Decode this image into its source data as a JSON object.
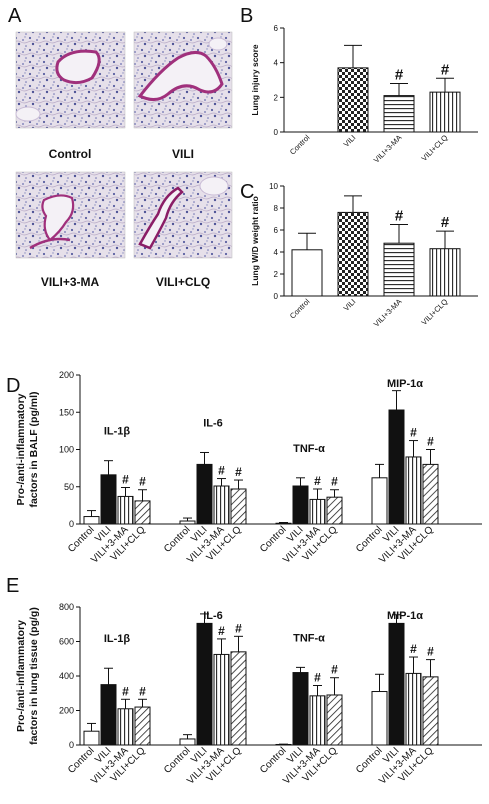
{
  "panel_letters": {
    "a": "A",
    "b": "B",
    "c": "C",
    "d": "D",
    "e": "E"
  },
  "micrographs": [
    {
      "caption": "Control"
    },
    {
      "caption": "VILI"
    },
    {
      "caption": "VILI+3-MA"
    },
    {
      "caption": "VILI+CLQ"
    }
  ],
  "colors": {
    "tissue_bg": "#e4dde8",
    "cell_dot": "#5a5fa0",
    "wall": "#a0307c",
    "ink": "#111111"
  },
  "chart_data": [
    {
      "id": "B",
      "type": "bar",
      "ylabel": "Lung injury score",
      "ylim": [
        0,
        6
      ],
      "yticks": [
        0,
        2,
        4,
        6
      ],
      "categories": [
        "Control",
        "VILI",
        "VILI+3-MA",
        "VILI+CLQ"
      ],
      "fills": [
        "white",
        "check",
        "hlines",
        "vlines"
      ],
      "values": [
        0,
        3.7,
        2.1,
        2.3
      ],
      "errors": [
        0,
        1.3,
        0.7,
        0.8
      ],
      "marks": [
        "",
        "",
        "#",
        "#"
      ]
    },
    {
      "id": "C",
      "type": "bar",
      "ylabel": "Lung W/D weight ratio",
      "ylim": [
        0,
        10
      ],
      "yticks": [
        0,
        2,
        4,
        6,
        8,
        10
      ],
      "categories": [
        "Control",
        "VILI",
        "VILI+3-MA",
        "VILI+CLQ"
      ],
      "fills": [
        "white",
        "check",
        "hlines",
        "vlines"
      ],
      "values": [
        4.2,
        7.6,
        4.8,
        4.3
      ],
      "errors": [
        1.5,
        1.5,
        1.7,
        1.6
      ],
      "marks": [
        "",
        "",
        "#",
        "#"
      ]
    },
    {
      "id": "D",
      "type": "bar",
      "ylabel_lines": [
        "Pro-/anti-inflammatory",
        "factors in BALF (pg/ml)"
      ],
      "ylim": [
        0,
        200
      ],
      "yticks": [
        0,
        50,
        100,
        150,
        200
      ],
      "categories": [
        "Control",
        "VILI",
        "VILI+3-MA",
        "VILI+CLQ"
      ],
      "fills": [
        "white",
        "black",
        "vlines",
        "diag"
      ],
      "groups": [
        {
          "name": "IL-1β",
          "values": [
            10,
            66,
            37,
            31
          ],
          "errors": [
            8,
            19,
            12,
            15
          ],
          "marks": [
            "",
            "",
            "#",
            "#"
          ]
        },
        {
          "name": "IL-6",
          "values": [
            4,
            80,
            51,
            47
          ],
          "errors": [
            4,
            16,
            10,
            12
          ],
          "marks": [
            "",
            "",
            "#",
            "#"
          ]
        },
        {
          "name": "TNF-α",
          "values": [
            1,
            51,
            33,
            36
          ],
          "errors": [
            1,
            11,
            14,
            10
          ],
          "marks": [
            "",
            "",
            "#",
            "#"
          ]
        },
        {
          "name": "MIP-1α",
          "values": [
            62,
            153,
            90,
            80
          ],
          "errors": [
            18,
            26,
            22,
            20
          ],
          "marks": [
            "",
            "",
            "#",
            "#"
          ]
        }
      ]
    },
    {
      "id": "E",
      "type": "bar",
      "ylabel_lines": [
        "Pro-/anti-inflammatory",
        "factors in lung tissue (pg/g)"
      ],
      "ylim": [
        0,
        800
      ],
      "yticks": [
        0,
        200,
        400,
        600,
        800
      ],
      "categories": [
        "Control",
        "VILI",
        "VILI+3-MA",
        "VILI+CLQ"
      ],
      "fills": [
        "white",
        "black",
        "vlines",
        "diag"
      ],
      "groups": [
        {
          "name": "IL-1β",
          "values": [
            80,
            350,
            210,
            220
          ],
          "errors": [
            45,
            95,
            55,
            45
          ],
          "marks": [
            "",
            "",
            "#",
            "#"
          ]
        },
        {
          "name": "IL-6",
          "values": [
            35,
            705,
            525,
            540
          ],
          "errors": [
            25,
            55,
            90,
            90
          ],
          "marks": [
            "",
            "",
            "#",
            "#"
          ]
        },
        {
          "name": "TNF-α",
          "values": [
            3,
            420,
            285,
            290
          ],
          "errors": [
            2,
            30,
            60,
            100
          ],
          "marks": [
            "",
            "",
            "#",
            "#"
          ]
        },
        {
          "name": "MIP-1α",
          "values": [
            310,
            705,
            415,
            395
          ],
          "errors": [
            100,
            50,
            95,
            100
          ],
          "marks": [
            "",
            "",
            "#",
            "#"
          ]
        }
      ]
    }
  ]
}
